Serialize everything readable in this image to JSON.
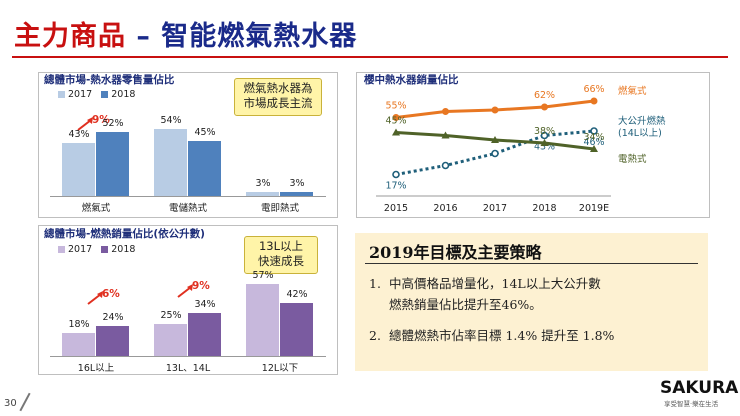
{
  "slide": {
    "title_main": "主力商品",
    "title_sub": "– 智能燃氣熱水器",
    "page_number": "30",
    "brand": {
      "name": "SAKURA",
      "tagline": "享受智慧‧樂在生活"
    },
    "colors": {
      "title": "#c81010",
      "subtitle": "#1a2a8a"
    }
  },
  "charts": {
    "retail": {
      "title": "總體市場-熱水器零售量佔比",
      "callout": [
        "燃氣熱水器為",
        "市場成長主流"
      ],
      "growth_label": "9%",
      "chart_data": {
        "type": "bar",
        "categories": [
          "燃氣式",
          "電儲熱式",
          "電即熱式"
        ],
        "series": [
          {
            "name": "2017",
            "values": [
              43,
              54,
              3
            ],
            "labels": [
              "43%",
              "54%",
              "3%"
            ],
            "color": "#b8cce4"
          },
          {
            "name": "2018",
            "values": [
              52,
              45,
              3
            ],
            "labels": [
              "52%",
              "45%",
              "3%"
            ],
            "color": "#4f81bd"
          }
        ],
        "ylim": [
          0,
          60
        ]
      }
    },
    "capacity": {
      "title": "總體市場-燃熱銷量佔比(依公升數)",
      "callout": [
        "13L以上",
        "快速成長"
      ],
      "growth_labels": [
        "6%",
        "9%"
      ],
      "chart_data": {
        "type": "bar",
        "categories": [
          "16L以上",
          "13L、14L",
          "12L以下"
        ],
        "series": [
          {
            "name": "2017",
            "values": [
              18,
              25,
              57
            ],
            "labels": [
              "18%",
              "25%",
              "57%"
            ],
            "color": "#c7b8dc"
          },
          {
            "name": "2018",
            "values": [
              24,
              34,
              42
            ],
            "labels": [
              "24%",
              "34%",
              "42%"
            ],
            "color": "#7a5ba0"
          }
        ],
        "ylim": [
          0,
          65
        ]
      }
    },
    "sakura": {
      "title": "櫻中熱水器銷量佔比",
      "chart_data": {
        "type": "line",
        "x": [
          "2015",
          "2016",
          "2017",
          "2018",
          "2019E"
        ],
        "series": [
          {
            "name": "燃氣式",
            "values": [
              55,
              59,
              60,
              62,
              66
            ],
            "labels": {
              "0": "55%",
              "3": "62%",
              "4": "66%"
            },
            "color": "#e87722"
          },
          {
            "name": "大公升燃熱(14L以上)",
            "values": [
              17,
              23,
              31,
              43,
              46
            ],
            "labels": {
              "0": "17%",
              "3": "43%",
              "4": "46%"
            },
            "color": "#1f5f7a"
          },
          {
            "name": "電熱式",
            "values": [
              45,
              43,
              40,
              38,
              34
            ],
            "labels": {
              "0": "45%",
              "3": "38%",
              "4": "34%"
            },
            "color": "#4f6228"
          }
        ],
        "legend_lines": {
          "gas": [
            "燃氣式"
          ],
          "large": [
            "大公升燃熱",
            "(14L以上)"
          ],
          "elec": [
            "電熱式"
          ]
        },
        "ylim": [
          0,
          80
        ]
      }
    }
  },
  "strategy": {
    "title": "2019年目標及主要策略",
    "items": [
      {
        "num": "1.",
        "line1": "中高價格品增量化，14L以上大公升數",
        "line2": "燃熱銷量佔比提升至46%。"
      },
      {
        "num": "2.",
        "line1": "總體燃熱市佔率目標 1.4% 提升至 1.8%"
      }
    ]
  }
}
